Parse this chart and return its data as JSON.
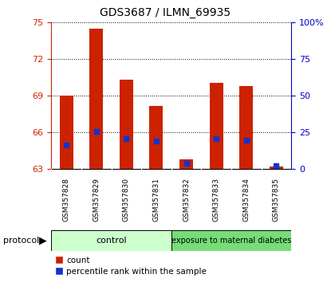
{
  "title": "GDS3687 / ILMN_69935",
  "samples": [
    "GSM357828",
    "GSM357829",
    "GSM357830",
    "GSM357831",
    "GSM357832",
    "GSM357833",
    "GSM357834",
    "GSM357835"
  ],
  "red_bar_tops": [
    69.0,
    74.5,
    70.3,
    68.2,
    63.8,
    70.05,
    69.8,
    63.2
  ],
  "blue_marks": [
    65.0,
    66.1,
    65.5,
    65.3,
    63.5,
    65.5,
    65.4,
    63.3
  ],
  "bar_base": 63.0,
  "ylim_left": [
    63,
    75
  ],
  "ylim_right": [
    0,
    100
  ],
  "yticks_left": [
    63,
    66,
    69,
    72,
    75
  ],
  "yticks_right": [
    0,
    25,
    50,
    75,
    100
  ],
  "ytick_labels_right": [
    "0",
    "25",
    "50",
    "75",
    "100%"
  ],
  "control_count": 4,
  "exposure_count": 4,
  "control_label": "control",
  "exposure_label": "exposure to maternal diabetes",
  "protocol_label": "protocol",
  "legend_red": "count",
  "legend_blue": "percentile rank within the sample",
  "bar_color": "#cc2200",
  "blue_color": "#1133cc",
  "control_bg": "#ccffcc",
  "exposure_bg": "#77dd77",
  "tick_area_bg": "#cccccc",
  "left_tick_color": "#cc2200",
  "right_tick_color": "#0000cc",
  "bar_width": 0.45
}
